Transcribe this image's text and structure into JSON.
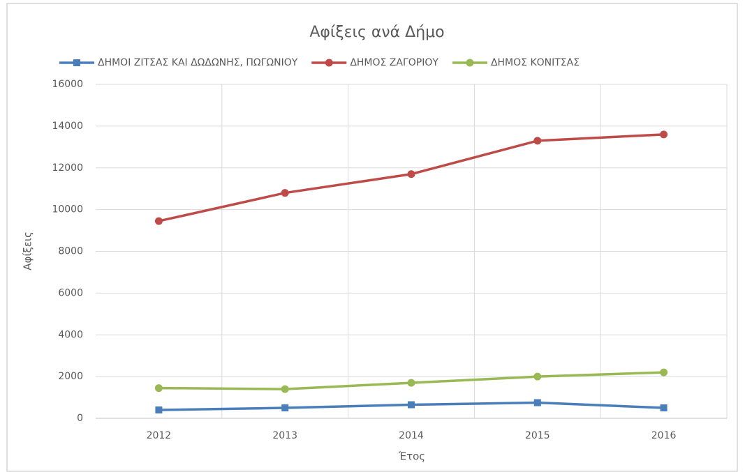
{
  "chart_data": {
    "type": "line",
    "title": "Αφίξεις ανά Δήμο",
    "x_label": "Έτος",
    "y_label": "Αφίξεις",
    "categories": [
      "2012",
      "2013",
      "2014",
      "2015",
      "2016"
    ],
    "series": [
      {
        "name": "ΔΗΜΟΙ ΖΙΤΣΑΣ ΚΑΙ ΔΩΔΩΝΗΣ, ΠΩΓΩΝΙΟΥ",
        "color": "#4a7ebb",
        "marker": "square",
        "values": [
          400,
          500,
          650,
          750,
          500
        ]
      },
      {
        "name": "ΔΗΜΟΣ ΖΑΓΟΡΙΟΥ",
        "color": "#be4b48",
        "marker": "circle",
        "values": [
          9450,
          10800,
          11700,
          13300,
          13600
        ]
      },
      {
        "name": "ΔΗΜΟΣ ΚΟΝΙΤΣΑΣ",
        "color": "#98b954",
        "marker": "circle",
        "values": [
          1450,
          1400,
          1700,
          2000,
          2200
        ]
      }
    ],
    "ylim": [
      0,
      16000
    ],
    "yticks": [
      0,
      2000,
      4000,
      6000,
      8000,
      10000,
      12000,
      14000,
      16000
    ],
    "grid": true,
    "legend": "top"
  }
}
